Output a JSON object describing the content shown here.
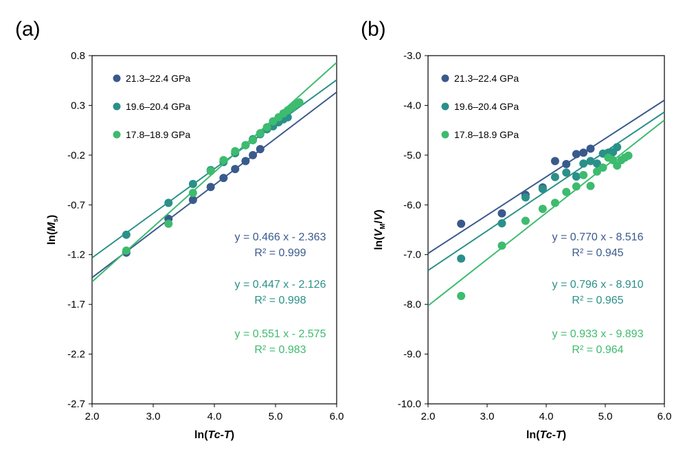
{
  "chart_data": [
    {
      "type": "scatter",
      "panel_label": "(a)",
      "xlabel": {
        "prefix": "ln(",
        "v1": "Tc",
        "mid": "-",
        "v2": "T",
        "suffix": ")"
      },
      "ylabel": {
        "prefix": "ln(",
        "main": "M",
        "sub": "s",
        "suffix": ")"
      },
      "xlim": [
        2.0,
        6.0
      ],
      "ylim": [
        -2.7,
        0.8
      ],
      "x_ticks": [
        2.0,
        3.0,
        4.0,
        5.0,
        6.0
      ],
      "x_tick_labels": [
        "2.0",
        "3.0",
        "4.0",
        "5.0",
        "6.0"
      ],
      "y_ticks": [
        0.8,
        0.3,
        -0.2,
        -0.7,
        -1.2,
        -1.7,
        -2.2,
        -2.7
      ],
      "y_tick_labels": [
        "0.8",
        "0.3",
        "-0.2",
        "-0.7",
        "-1.2",
        "-1.7",
        "-2.2",
        "-2.7"
      ],
      "series": [
        {
          "name": "21.3–22.4 GPa",
          "color": "#3a5a8c",
          "x": [
            2.56,
            3.25,
            3.65,
            3.94,
            4.15,
            4.34,
            4.51,
            4.63,
            4.75
          ],
          "y": [
            -1.18,
            -0.84,
            -0.65,
            -0.52,
            -0.43,
            -0.34,
            -0.26,
            -0.2,
            -0.14
          ],
          "fit": {
            "slope": 0.466,
            "intercept": -2.363
          },
          "equation": "y = 0.466 x - 2.363",
          "r2": "R² = 0.999"
        },
        {
          "name": "19.6–20.4 GPa",
          "color": "#2a9089",
          "x": [
            2.56,
            3.25,
            3.65,
            3.94,
            4.15,
            4.34,
            4.51,
            4.63,
            4.75,
            4.86,
            4.96,
            5.05,
            5.13,
            5.2
          ],
          "y": [
            -1.0,
            -0.68,
            -0.49,
            -0.35,
            -0.27,
            -0.18,
            -0.1,
            -0.04,
            0.01,
            0.06,
            0.09,
            0.13,
            0.16,
            0.18
          ],
          "fit": {
            "slope": 0.447,
            "intercept": -2.126
          },
          "equation": "y = 0.447 x - 2.126",
          "r2": "R² = 0.998"
        },
        {
          "name": "17.8–18.9 GPa",
          "color": "#3dbb6e",
          "x": [
            2.56,
            3.25,
            3.65,
            3.94,
            4.15,
            4.34,
            4.51,
            4.63,
            4.75,
            4.86,
            4.96,
            5.05,
            5.13,
            5.2,
            5.27,
            5.33,
            5.39
          ],
          "y": [
            -1.16,
            -0.89,
            -0.58,
            -0.36,
            -0.25,
            -0.16,
            -0.1,
            -0.05,
            0.02,
            0.08,
            0.14,
            0.18,
            0.22,
            0.25,
            0.28,
            0.31,
            0.33
          ],
          "fit": {
            "slope": 0.551,
            "intercept": -2.575
          },
          "equation": "y = 0.551 x - 2.575",
          "r2": "R² = 0.983"
        }
      ]
    },
    {
      "type": "scatter",
      "panel_label": "(b)",
      "xlabel": {
        "prefix": "ln(",
        "v1": "Tc",
        "mid": "-",
        "v2": "T",
        "suffix": ")"
      },
      "ylabel": {
        "prefix": "ln(",
        "main": "V",
        "sub": "M",
        "mid": "/",
        "main2": "V",
        "suffix": ")"
      },
      "xlim": [
        2.0,
        6.0
      ],
      "ylim": [
        -10.0,
        -3.0
      ],
      "x_ticks": [
        2.0,
        3.0,
        4.0,
        5.0,
        6.0
      ],
      "x_tick_labels": [
        "2.0",
        "3.0",
        "4.0",
        "5.0",
        "6.0"
      ],
      "y_ticks": [
        -3.0,
        -4.0,
        -5.0,
        -6.0,
        -7.0,
        -8.0,
        -9.0,
        -10.0
      ],
      "y_tick_labels": [
        "-3.0",
        "-4.0",
        "-5.0",
        "-6.0",
        "-7.0",
        "-8.0",
        "-9.0",
        "-10.0"
      ],
      "series": [
        {
          "name": "21.3–22.4 GPa",
          "color": "#3a5a8c",
          "x": [
            2.56,
            3.25,
            3.65,
            3.94,
            4.15,
            4.34,
            4.51,
            4.63,
            4.75
          ],
          "y": [
            -6.38,
            -6.17,
            -5.8,
            -5.65,
            -5.12,
            -5.18,
            -4.98,
            -4.95,
            -4.87
          ],
          "fit": {
            "slope": 0.77,
            "intercept": -8.516
          },
          "equation": "y = 0.770 x - 8.516",
          "r2": "R² = 0.945"
        },
        {
          "name": "19.6–20.4 GPa",
          "color": "#2a9089",
          "x": [
            2.56,
            3.25,
            3.65,
            3.94,
            4.15,
            4.34,
            4.51,
            4.63,
            4.75,
            4.86,
            4.96,
            5.05,
            5.13,
            5.2
          ],
          "y": [
            -7.08,
            -6.37,
            -5.85,
            -5.68,
            -5.44,
            -5.35,
            -5.43,
            -5.17,
            -5.12,
            -5.17,
            -4.97,
            -4.95,
            -4.94,
            -4.84
          ],
          "fit": {
            "slope": 0.796,
            "intercept": -8.91
          },
          "equation": "y = 0.796 x - 8.910",
          "r2": "R² = 0.965"
        },
        {
          "name": "17.8–18.9 GPa",
          "color": "#3dbb6e",
          "x": [
            2.56,
            3.25,
            3.65,
            3.94,
            4.15,
            4.34,
            4.51,
            4.63,
            4.75,
            4.86,
            4.96,
            5.05,
            5.13,
            5.2,
            5.27,
            5.33,
            5.39
          ],
          "y": [
            -7.83,
            -6.82,
            -6.32,
            -6.08,
            -5.96,
            -5.74,
            -5.63,
            -5.4,
            -5.62,
            -5.33,
            -5.25,
            -5.05,
            -5.1,
            -5.21,
            -5.1,
            -5.05,
            -5.01
          ],
          "fit": {
            "slope": 0.933,
            "intercept": -9.893
          },
          "equation": "y = 0.933 x - 9.893",
          "r2": "R² = 0.964"
        }
      ]
    }
  ]
}
